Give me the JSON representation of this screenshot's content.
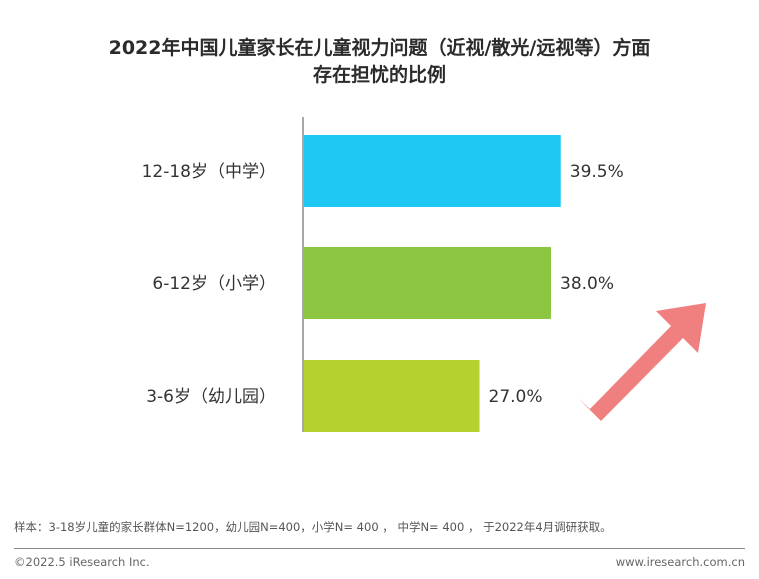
{
  "chart_data": {
    "type": "bar",
    "orientation": "horizontal",
    "title_line1": "2022年中国儿童家长在儿童视力问题（近视/散光/远视等）方面",
    "title_line2": "存在担忧的比例",
    "categories": [
      "12-18岁（中学）",
      "6-12岁（小学）",
      "3-6岁（幼儿园）"
    ],
    "values": [
      39.5,
      38.0,
      27.0
    ],
    "value_labels": [
      "39.5%",
      "38.0%",
      "27.0%"
    ],
    "colors": [
      "#1fc8f2",
      "#8cc540",
      "#b3d230"
    ],
    "xlim": [
      0,
      60
    ],
    "grid": false,
    "legend": "none"
  },
  "decoration": {
    "arrow_color": "#f08080",
    "axis_color": "#8c8c8c"
  },
  "footer": {
    "footnote": "样本：3-18岁儿童的家长群体N=1200，幼儿园N=400，小学N= 400 ， 中学N= 400 ， 于2022年4月调研获取。",
    "copyright": "©2022.5 iResearch Inc.",
    "website": "www.iresearch.com.cn"
  }
}
